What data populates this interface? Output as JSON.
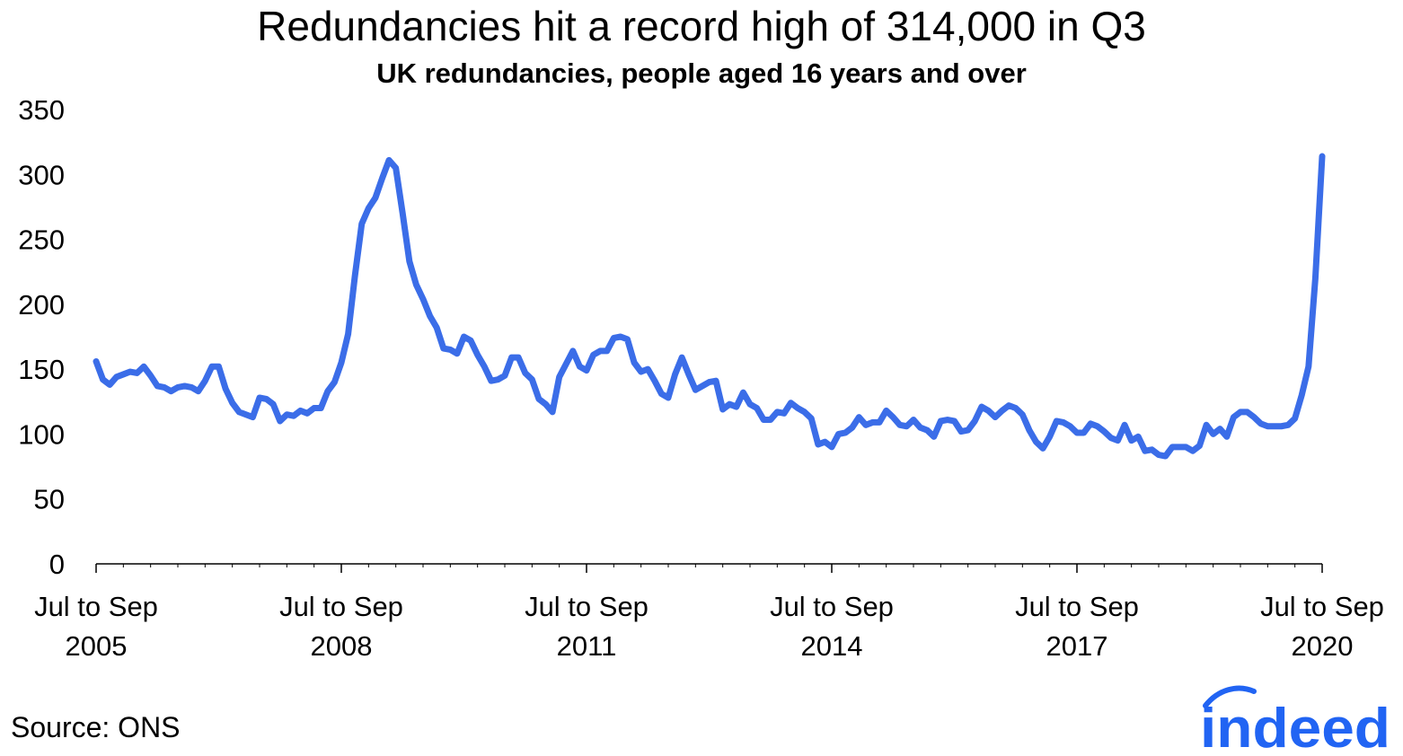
{
  "chart_data": {
    "type": "line",
    "title": "Redundancies hit a record high of 314,000 in Q3",
    "subtitle": "UK redundancies, people aged 16 years and over",
    "xlabel": "",
    "ylabel": "",
    "ylim": [
      0,
      350
    ],
    "y_ticks": [
      0,
      50,
      100,
      150,
      200,
      250,
      300,
      350
    ],
    "x_ticks": [
      {
        "line1": "Jul to Sep",
        "line2": "2005",
        "index": 0
      },
      {
        "line1": "Jul to Sep",
        "line2": "2008",
        "index": 36
      },
      {
        "line1": "Jul to Sep",
        "line2": "2011",
        "index": 72
      },
      {
        "line1": "Jul to Sep",
        "line2": "2014",
        "index": 108
      },
      {
        "line1": "Jul to Sep",
        "line2": "2017",
        "index": 144
      },
      {
        "line1": "Jul to Sep",
        "line2": "2020",
        "index": 180
      }
    ],
    "color": "#3b6de8",
    "series": [
      {
        "name": "UK redundancies (thousands)",
        "values": [
          156,
          142,
          138,
          144,
          146,
          148,
          147,
          152,
          145,
          137,
          136,
          133,
          136,
          137,
          136,
          133,
          141,
          152,
          152,
          135,
          124,
          117,
          115,
          113,
          128,
          127,
          123,
          110,
          115,
          114,
          118,
          116,
          120,
          120,
          133,
          140,
          155,
          177,
          222,
          262,
          274,
          282,
          297,
          311,
          305,
          270,
          233,
          215,
          204,
          191,
          182,
          166,
          165,
          162,
          175,
          172,
          161,
          152,
          141,
          142,
          145,
          159,
          159,
          147,
          142,
          127,
          123,
          117,
          144,
          154,
          164,
          152,
          149,
          161,
          164,
          164,
          174,
          175,
          173,
          155,
          148,
          150,
          141,
          131,
          128,
          146,
          159,
          146,
          134,
          137,
          140,
          141,
          119,
          123,
          121,
          132,
          123,
          120,
          111,
          111,
          117,
          116,
          124,
          120,
          117,
          112,
          92,
          94,
          90,
          100,
          101,
          105,
          113,
          107,
          109,
          109,
          118,
          113,
          107,
          106,
          111,
          105,
          103,
          98,
          110,
          111,
          110,
          102,
          103,
          110,
          121,
          118,
          113,
          118,
          122,
          120,
          115,
          103,
          94,
          89,
          98,
          110,
          109,
          106,
          101,
          101,
          108,
          106,
          102,
          97,
          95,
          107,
          95,
          98,
          87,
          88,
          84,
          83,
          90,
          90,
          90,
          87,
          91,
          107,
          100,
          104,
          98,
          113,
          117,
          117,
          113,
          108,
          106,
          106,
          106,
          107,
          112,
          130,
          152,
          220,
          314
        ]
      }
    ]
  },
  "source": "Source: ONS",
  "logo": {
    "text": "indeed",
    "color": "#2164f3"
  }
}
